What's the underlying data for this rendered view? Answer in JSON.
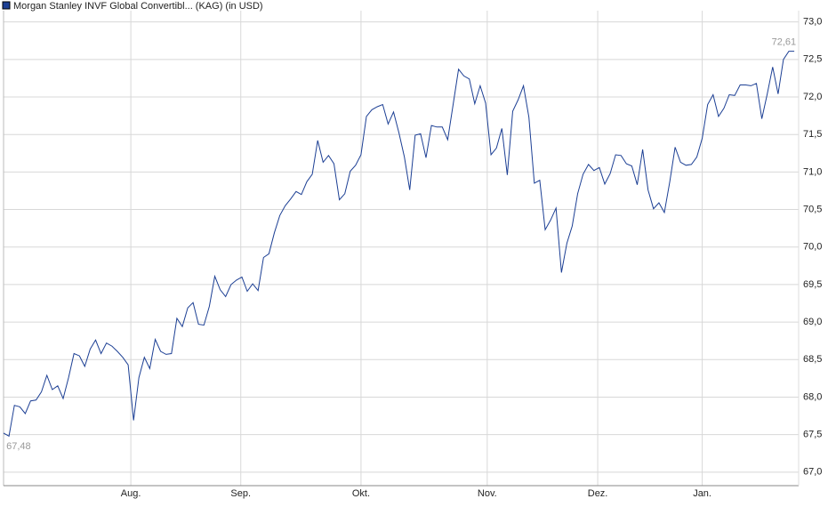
{
  "chart_data": {
    "type": "line",
    "series": [
      {
        "name": "Morgan Stanley INVF Global Convertibl... (KAG) (in USD)",
        "color": "#1c3f94",
        "values": [
          67.52,
          67.48,
          67.89,
          67.87,
          67.78,
          67.95,
          67.96,
          68.07,
          68.29,
          68.1,
          68.15,
          67.98,
          68.26,
          68.58,
          68.55,
          68.41,
          68.64,
          68.76,
          68.58,
          68.72,
          68.68,
          68.61,
          68.53,
          68.43,
          67.69,
          68.26,
          68.53,
          68.38,
          68.77,
          68.61,
          68.57,
          68.58,
          69.05,
          68.94,
          69.19,
          69.26,
          68.97,
          68.96,
          69.21,
          69.61,
          69.43,
          69.34,
          69.5,
          69.56,
          69.6,
          69.41,
          69.51,
          69.42,
          69.86,
          69.91,
          70.19,
          70.42,
          70.55,
          70.64,
          70.74,
          70.7,
          70.87,
          70.97,
          71.42,
          71.13,
          71.22,
          71.11,
          70.63,
          70.71,
          71.01,
          71.09,
          71.23,
          71.74,
          71.83,
          71.87,
          71.9,
          71.64,
          71.8,
          71.52,
          71.2,
          70.76,
          71.49,
          71.51,
          71.19,
          71.62,
          71.6,
          71.6,
          71.43,
          71.9,
          72.37,
          72.28,
          72.24,
          71.91,
          72.15,
          71.92,
          71.23,
          71.32,
          71.58,
          70.96,
          71.81,
          71.96,
          72.15,
          71.73,
          70.85,
          70.89,
          70.23,
          70.36,
          70.52,
          69.66,
          70.05,
          70.28,
          70.71,
          70.97,
          71.1,
          71.02,
          71.06,
          70.84,
          70.98,
          71.23,
          71.22,
          71.11,
          71.08,
          70.83,
          71.3,
          70.76,
          70.51,
          70.59,
          70.46,
          70.87,
          71.33,
          71.13,
          71.09,
          71.1,
          71.2,
          71.45,
          71.9,
          72.03,
          71.74,
          71.85,
          72.03,
          72.02,
          72.16,
          72.16,
          72.15,
          72.18,
          71.71,
          72.04,
          72.4,
          72.04,
          72.5,
          72.61,
          72.61
        ]
      }
    ],
    "xlim": [
      0,
      146.8
    ],
    "xticks": [
      {
        "value": 23.5,
        "label": "Aug."
      },
      {
        "value": 43.8,
        "label": "Sep."
      },
      {
        "value": 66,
        "label": "Okt."
      },
      {
        "value": 89.3,
        "label": "Nov."
      },
      {
        "value": 109.7,
        "label": "Dez."
      },
      {
        "value": 129,
        "label": "Jan."
      }
    ],
    "ylim": [
      66.82,
      73.15
    ],
    "yticks": [
      {
        "value": 67,
        "label": "67,0"
      },
      {
        "value": 67.5,
        "label": "67,5"
      },
      {
        "value": 68,
        "label": "68,0"
      },
      {
        "value": 68.5,
        "label": "68,5"
      },
      {
        "value": 69,
        "label": "69,0"
      },
      {
        "value": 69.5,
        "label": "69,5"
      },
      {
        "value": 70,
        "label": "70,0"
      },
      {
        "value": 70.5,
        "label": "70,5"
      },
      {
        "value": 71,
        "label": "71,0"
      },
      {
        "value": 71.5,
        "label": "71,5"
      },
      {
        "value": 72,
        "label": "72,0"
      },
      {
        "value": 72.5,
        "label": "72,5"
      },
      {
        "value": 73,
        "label": "73,0"
      }
    ],
    "annotations": [
      {
        "text": "67,48",
        "x": 1,
        "y": 67.48
      },
      {
        "text": "72,61",
        "x": 146,
        "y": 72.61
      }
    ],
    "grid": true
  }
}
